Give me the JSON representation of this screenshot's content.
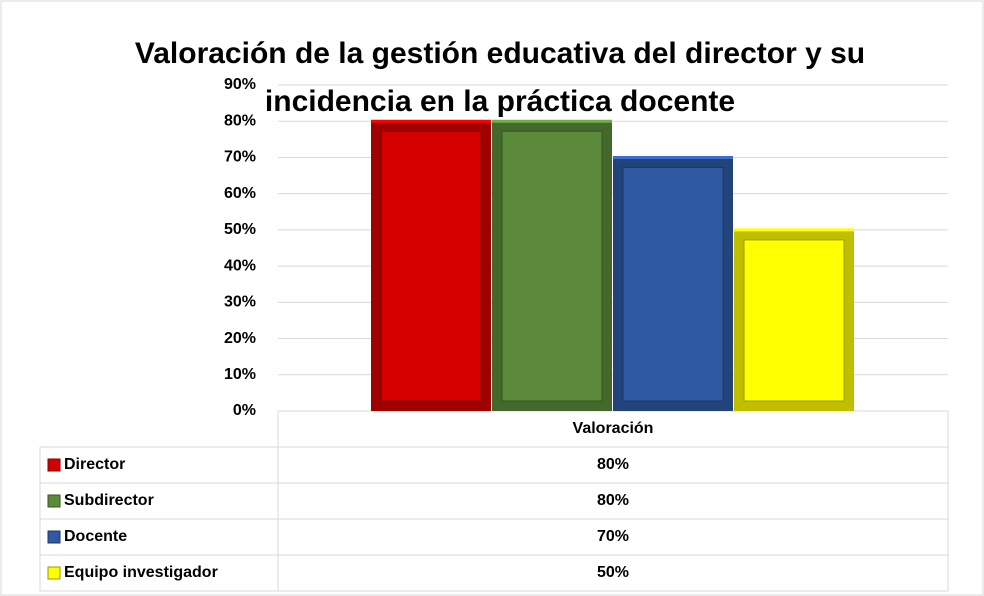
{
  "chart_data": {
    "type": "bar",
    "title": "Valoración de la gestión educativa del director y su incidencia en la práctica docente",
    "categories": [
      "Valoración"
    ],
    "series": [
      {
        "name": "Director",
        "color": "#d40000",
        "values": [
          80
        ],
        "value_labels": [
          "80%"
        ]
      },
      {
        "name": "Subdirector",
        "color": "#5a8a3a",
        "values": [
          80
        ],
        "value_labels": [
          "80%"
        ]
      },
      {
        "name": "Docente",
        "color": "#2f5aa3",
        "values": [
          70
        ],
        "value_labels": [
          "70%"
        ]
      },
      {
        "name": "Equipo investigador",
        "color": "#ffff00",
        "values": [
          50
        ],
        "value_labels": [
          "50%"
        ]
      }
    ],
    "ylim": [
      0,
      90
    ],
    "yticks": [
      {
        "value": 0,
        "label": "0%"
      },
      {
        "value": 10,
        "label": "10%"
      },
      {
        "value": 20,
        "label": "20%"
      },
      {
        "value": 30,
        "label": "30%"
      },
      {
        "value": 40,
        "label": "40%"
      },
      {
        "value": 50,
        "label": "50%"
      },
      {
        "value": 60,
        "label": "60%"
      },
      {
        "value": 70,
        "label": "70%"
      },
      {
        "value": 80,
        "label": "80%"
      },
      {
        "value": 90,
        "label": "90%"
      }
    ],
    "grid": true
  }
}
